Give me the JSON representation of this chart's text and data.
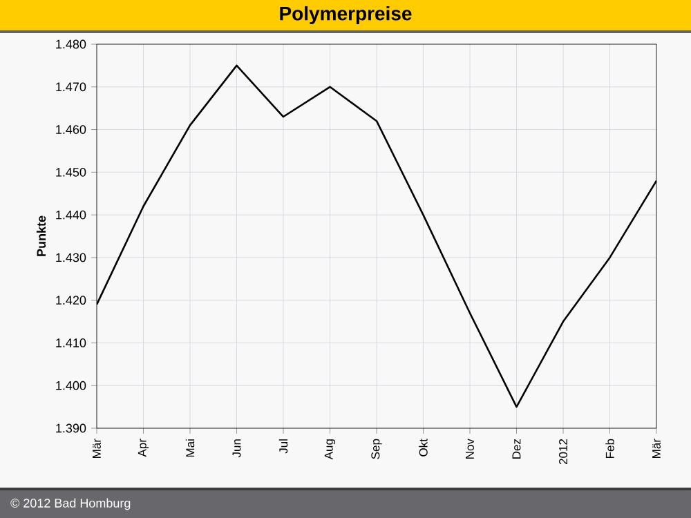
{
  "chart_data": {
    "type": "line",
    "title": "Polymerpreise",
    "ylabel": "Punkte",
    "categories": [
      "Mär",
      "Apr",
      "Mai",
      "Jun",
      "Jul",
      "Aug",
      "Sep",
      "Okt",
      "Nov",
      "Dez",
      "2012",
      "Feb",
      "Mär"
    ],
    "series": [
      {
        "color": "#000000",
        "values": [
          1.419,
          1.442,
          1.461,
          1.475,
          1.463,
          1.47,
          1.462,
          1.44,
          1.417,
          1.395,
          1.415,
          1.43,
          1.448
        ]
      }
    ],
    "ylim": [
      1.39,
      1.48
    ],
    "yticks": [
      {
        "value": 1.39,
        "label": "1.390"
      },
      {
        "value": 1.4,
        "label": "1.400"
      },
      {
        "value": 1.41,
        "label": "1.410"
      },
      {
        "value": 1.42,
        "label": "1.420"
      },
      {
        "value": 1.43,
        "label": "1.430"
      },
      {
        "value": 1.44,
        "label": "1.440"
      },
      {
        "value": 1.45,
        "label": "1.450"
      },
      {
        "value": 1.46,
        "label": "1.460"
      },
      {
        "value": 1.47,
        "label": "1.470"
      },
      {
        "value": 1.48,
        "label": "1.480"
      }
    ],
    "grid": true,
    "marker": "none",
    "line_style": "solid",
    "annotations": [
      "© 2012 Bad Homburg"
    ]
  }
}
